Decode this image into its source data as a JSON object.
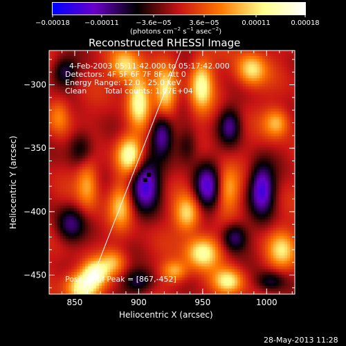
{
  "chart_data": {
    "type": "heatmap",
    "title": "Reconstructed RHESSI Image",
    "xlabel": "Heliocentric X (arcsec)",
    "ylabel": "Heliocentric Y (arcsec)",
    "xlim": [
      830,
      1022
    ],
    "ylim": [
      -465,
      -273
    ],
    "x_ticks": [
      850,
      900,
      950,
      1000
    ],
    "x_tick_labels": [
      "850",
      "900",
      "950",
      "1000"
    ],
    "y_ticks": [
      -300,
      -350,
      -400,
      -450
    ],
    "y_tick_labels": [
      "−300",
      "−350",
      "−400",
      "−450"
    ],
    "colorbar": {
      "min": -0.00018,
      "max": 0.00018,
      "tick_values": [
        -0.00018,
        -0.00011,
        -3.6e-05,
        3.6e-05,
        0.00011,
        0.00018
      ],
      "tick_labels": [
        "−0.00018",
        "−0.00011",
        "−3.6e−05",
        "3.6e−05",
        "0.00011",
        "0.00018"
      ],
      "unit_main": "(photons cm",
      "unit_exp1": "−2",
      "unit_mid": " s",
      "unit_exp2": "−1",
      "unit_tail": " asec",
      "unit_exp3": "−2",
      "unit_close": ")",
      "colors": [
        "#0000ff",
        "#6a00c8",
        "#000000",
        "#c81414",
        "#ff7800",
        "#ffff8c",
        "#ffffff"
      ]
    },
    "annotations": {
      "time_range": "4-Feb-2003 05:11:42.000 to 05:17:42.000",
      "detectors": "Detectors: 4F 5F 6F 7F 8F, Att 0",
      "energy": "Energy Range: 12.0 - 25.0 keV",
      "clean_label": "Clean",
      "total_counts": "Total counts: 1.07E+04",
      "position_label": "Position of Peak = [867,-452]"
    },
    "peak": [
      867,
      -452
    ],
    "limb_line": [
      [
        859,
        -465
      ],
      [
        933,
        -273
      ]
    ],
    "blobs": [
      {
        "x": 856,
        "y": -459,
        "v": 1.0,
        "sx": 9,
        "sy": 8
      },
      {
        "x": 866,
        "y": -448,
        "v": 0.85,
        "sx": 7,
        "sy": 7
      },
      {
        "x": 889,
        "y": -285,
        "v": 0.75,
        "sx": 8,
        "sy": 9
      },
      {
        "x": 900,
        "y": -312,
        "v": 0.9,
        "sx": 6,
        "sy": 14
      },
      {
        "x": 893,
        "y": -355,
        "v": 0.95,
        "sx": 7,
        "sy": 10
      },
      {
        "x": 921,
        "y": -307,
        "v": 0.8,
        "sx": 6,
        "sy": 14
      },
      {
        "x": 949,
        "y": -300,
        "v": 0.85,
        "sx": 6,
        "sy": 14
      },
      {
        "x": 938,
        "y": -402,
        "v": 0.7,
        "sx": 7,
        "sy": 10
      },
      {
        "x": 950,
        "y": -432,
        "v": 0.9,
        "sx": 9,
        "sy": 9
      },
      {
        "x": 970,
        "y": -455,
        "v": 0.8,
        "sx": 8,
        "sy": 7
      },
      {
        "x": 988,
        "y": -288,
        "v": 0.75,
        "sx": 8,
        "sy": 9
      },
      {
        "x": 1008,
        "y": -330,
        "v": 0.6,
        "sx": 7,
        "sy": 8
      },
      {
        "x": 860,
        "y": -378,
        "v": 0.55,
        "sx": 6,
        "sy": 14
      },
      {
        "x": 886,
        "y": -395,
        "v": 0.6,
        "sx": 6,
        "sy": 12
      },
      {
        "x": 970,
        "y": -382,
        "v": 0.55,
        "sx": 6,
        "sy": 12
      },
      {
        "x": 1012,
        "y": -430,
        "v": 0.65,
        "sx": 8,
        "sy": 10
      },
      {
        "x": 838,
        "y": -325,
        "v": 0.45,
        "sx": 6,
        "sy": 10
      },
      {
        "x": 880,
        "y": -440,
        "v": 0.5,
        "sx": 7,
        "sy": 7
      },
      {
        "x": 928,
        "y": -447,
        "v": 0.6,
        "sx": 7,
        "sy": 6
      },
      {
        "x": 842,
        "y": -290,
        "v": -0.55,
        "sx": 7,
        "sy": 8
      },
      {
        "x": 846,
        "y": -410,
        "v": -0.6,
        "sx": 8,
        "sy": 10
      },
      {
        "x": 855,
        "y": -350,
        "v": -0.5,
        "sx": 7,
        "sy": 10
      },
      {
        "x": 905,
        "y": -378,
        "v": -0.95,
        "sx": 8,
        "sy": 14
      },
      {
        "x": 918,
        "y": -338,
        "v": -0.75,
        "sx": 6,
        "sy": 12
      },
      {
        "x": 953,
        "y": -380,
        "v": -0.8,
        "sx": 7,
        "sy": 13
      },
      {
        "x": 971,
        "y": -332,
        "v": -0.6,
        "sx": 6,
        "sy": 10
      },
      {
        "x": 996,
        "y": -382,
        "v": -0.95,
        "sx": 7,
        "sy": 14
      },
      {
        "x": 975,
        "y": -420,
        "v": -0.65,
        "sx": 7,
        "sy": 8
      },
      {
        "x": 1003,
        "y": -455,
        "v": -0.5,
        "sx": 8,
        "sy": 6
      },
      {
        "x": 900,
        "y": -455,
        "v": -0.55,
        "sx": 9,
        "sy": 7
      },
      {
        "x": 938,
        "y": -348,
        "v": -0.4,
        "sx": 6,
        "sy": 10
      }
    ]
  },
  "footer": {
    "date_stamp": "28-May-2013 11:28"
  }
}
